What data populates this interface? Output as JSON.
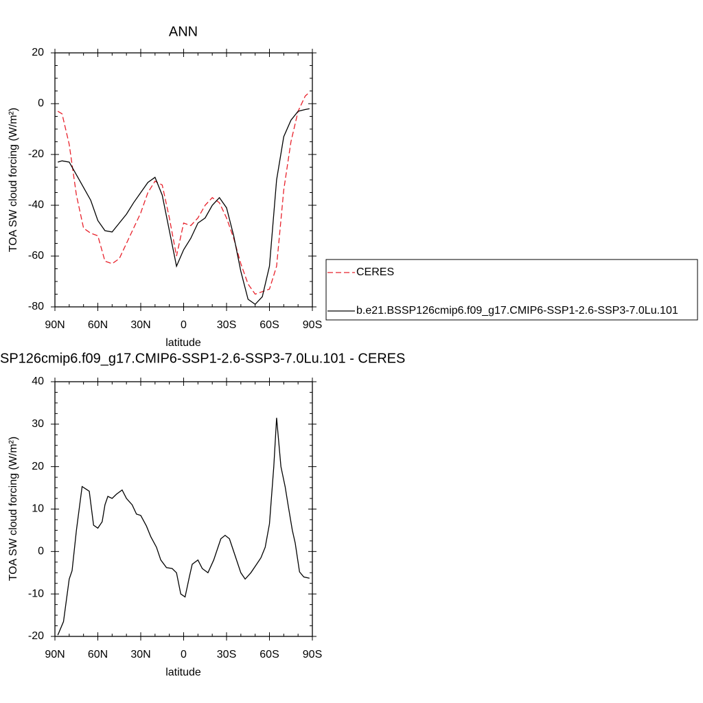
{
  "chart_data": [
    {
      "type": "line",
      "title": "ANN",
      "xlabel": "latitude",
      "ylabel": "TOA SW cloud forcing (W/m²)",
      "x": [
        88,
        85,
        80,
        75,
        70,
        65,
        60,
        55,
        50,
        45,
        40,
        35,
        30,
        25,
        20,
        15,
        10,
        5,
        0,
        -5,
        -10,
        -15,
        -20,
        -25,
        -30,
        -35,
        -40,
        -45,
        -50,
        -55,
        -60,
        -65,
        -70,
        -75,
        -80,
        -85,
        -88
      ],
      "series": [
        {
          "name": "CERES",
          "color": "#e8202a",
          "line_style": "dashed",
          "values": [
            -3,
            -4,
            -16,
            -36,
            -49,
            -51,
            -52,
            -62,
            -63,
            -61,
            -55,
            -49,
            -43,
            -35,
            -30.5,
            -32,
            -45,
            -60,
            -47,
            -48,
            -45,
            -40,
            -37,
            -39,
            -45,
            -53,
            -63,
            -71,
            -75,
            -74,
            -73,
            -64,
            -34,
            -15,
            -3,
            3,
            4.5
          ]
        },
        {
          "name": "b.e21.BSSP126cmip6.f09_g17.CMIP6-SSP1-2.6-SSP3-7.0Lu.101",
          "color": "#000000",
          "line_style": "solid",
          "values": [
            -23,
            -22.5,
            -23,
            -28,
            -33,
            -38,
            -46,
            -50,
            -50.5,
            -47,
            -43.5,
            -39,
            -35,
            -31,
            -29,
            -36,
            -50,
            -64,
            -57.5,
            -53,
            -47,
            -45,
            -40,
            -37,
            -41,
            -52,
            -66,
            -77,
            -79,
            -76,
            -64,
            -30,
            -13,
            -6.5,
            -3,
            -2.3,
            -2
          ]
        }
      ],
      "xlim": [
        90,
        -90
      ],
      "xticks": [
        {
          "value": 90,
          "label": "90N"
        },
        {
          "value": 60,
          "label": "60N"
        },
        {
          "value": 30,
          "label": "30N"
        },
        0,
        {
          "value": -30,
          "label": "30S"
        },
        {
          "value": -60,
          "label": "60S"
        },
        {
          "value": -90,
          "label": "90S"
        }
      ],
      "ylim": [
        -80,
        20
      ],
      "yticks": [
        -80,
        -60,
        -40,
        -20,
        0,
        20
      ],
      "legend": "right"
    },
    {
      "type": "line",
      "title": "SP126cmip6.f09_g17.CMIP6-SSP1-2.6-SSP3-7.0Lu.101 - CERES",
      "xlabel": "latitude",
      "ylabel": "TOA SW cloud forcing (W/m²)",
      "x": [
        88,
        84,
        80,
        78,
        75,
        71,
        66,
        63,
        60,
        57,
        55,
        53,
        50,
        47,
        43,
        40,
        36,
        33,
        30,
        26,
        23,
        19,
        16,
        12,
        8,
        5,
        2,
        -1,
        -4,
        -6,
        -10,
        -13,
        -17,
        -21,
        -26,
        -29,
        -32,
        -36,
        -40,
        -43,
        -47,
        -51,
        -54,
        -57,
        -60,
        -63,
        -65,
        -68,
        -71,
        -73,
        -76,
        -78,
        -81,
        -84,
        -88
      ],
      "color": "#000000",
      "values": [
        -19.7,
        -16.5,
        -6.5,
        -4.5,
        5,
        15.3,
        14.2,
        6.2,
        5.5,
        7,
        11,
        13,
        12.5,
        13.5,
        14.5,
        12.5,
        11,
        8.8,
        8.5,
        6,
        3.5,
        1,
        -2,
        -3.8,
        -4,
        -5,
        -10,
        -10.7,
        -6,
        -3,
        -2,
        -4,
        -5,
        -2,
        3,
        3.8,
        3,
        -1,
        -5,
        -6.5,
        -5,
        -3,
        -1.5,
        1,
        6.5,
        20,
        31.5,
        20,
        15.2,
        11,
        5,
        2,
        -4.8,
        -6,
        -6.3
      ],
      "xlim": [
        90,
        -90
      ],
      "xticks": [
        {
          "value": 90,
          "label": "90N"
        },
        {
          "value": 60,
          "label": "60N"
        },
        {
          "value": 30,
          "label": "30N"
        },
        0,
        {
          "value": -30,
          "label": "30S"
        },
        {
          "value": -60,
          "label": "60S"
        },
        {
          "value": -90,
          "label": "90S"
        }
      ],
      "ylim": [
        -20,
        40
      ],
      "yticks": [
        -20,
        -10,
        0,
        10,
        20,
        30,
        40
      ]
    }
  ]
}
